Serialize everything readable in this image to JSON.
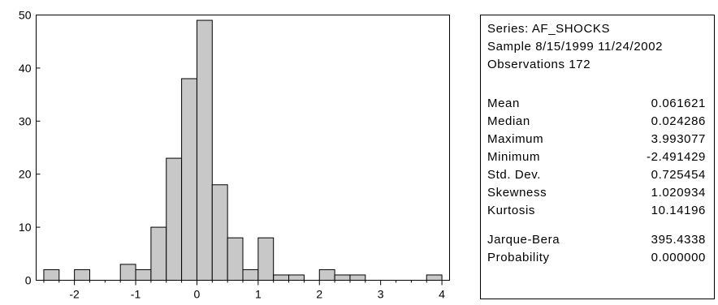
{
  "chart_data": {
    "type": "bar",
    "title": "",
    "xlabel": "",
    "ylabel": "",
    "bin_width": 0.25,
    "bins_start": [
      -2.5,
      -2.25,
      -2.0,
      -1.75,
      -1.5,
      -1.25,
      -1.0,
      -0.75,
      -0.5,
      -0.25,
      0.0,
      0.25,
      0.5,
      0.75,
      1.0,
      1.25,
      1.5,
      1.75,
      2.0,
      2.25,
      2.5,
      2.75,
      3.0,
      3.25,
      3.5,
      3.75
    ],
    "values": [
      2,
      0,
      2,
      0,
      0,
      3,
      2,
      10,
      23,
      38,
      49,
      18,
      8,
      2,
      8,
      1,
      1,
      0,
      2,
      1,
      1,
      0,
      0,
      0,
      0,
      1
    ],
    "xlim": [
      -2.625,
      4.125
    ],
    "ylim": [
      0,
      50
    ],
    "x_ticks": [
      "-2",
      "-1",
      "0",
      "1",
      "2",
      "3",
      "4"
    ],
    "x_tick_values": [
      -2,
      -1,
      0,
      1,
      2,
      3,
      4
    ],
    "y_ticks": [
      "0",
      "10",
      "20",
      "30",
      "40",
      "50"
    ],
    "y_tick_values": [
      0,
      10,
      20,
      30,
      40,
      50
    ],
    "bar_color": "#c8c8c8",
    "grid": false
  },
  "stats": {
    "series_line": "Series: AF_SHOCKS",
    "sample_line": "Sample 8/15/1999 11/24/2002",
    "observations_line": "Observations 172",
    "rows": [
      {
        "label": "Mean",
        "value": "0.061621"
      },
      {
        "label": "Median",
        "value": "0.024286"
      },
      {
        "label": "Maximum",
        "value": "3.993077"
      },
      {
        "label": "Minimum",
        "value": "-2.491429"
      },
      {
        "label": "Std. Dev.",
        "value": "0.725454"
      },
      {
        "label": "Skewness",
        "value": "1.020934"
      },
      {
        "label": "Kurtosis",
        "value": "10.14196"
      }
    ],
    "test_rows": [
      {
        "label": "Jarque-Bera",
        "value": "395.4338"
      },
      {
        "label": "Probability",
        "value": "0.000000"
      }
    ]
  }
}
